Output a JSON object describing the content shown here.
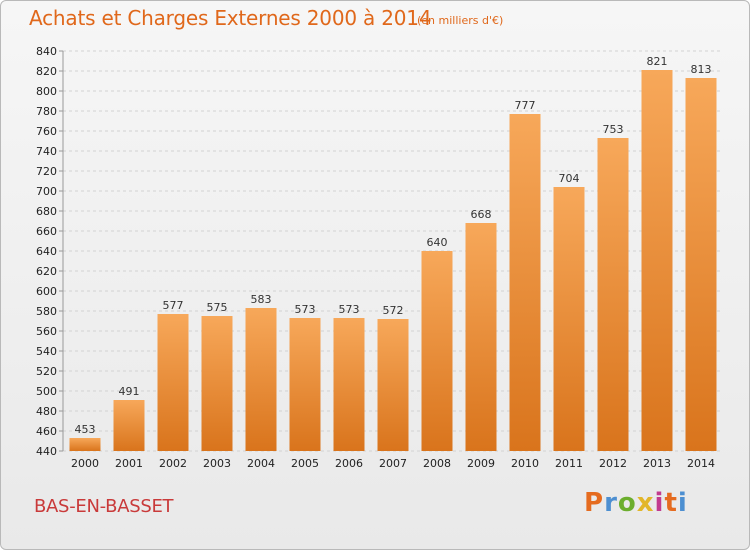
{
  "header": {
    "title": "Achats et Charges Externes 2000 à 2014",
    "subtitle": "(en milliers d'€)"
  },
  "footer": {
    "commune": "BAS-EN-BASSET",
    "logo_text": "Proxiti",
    "logo_colors": [
      "#e56b1f",
      "#4d8fd1",
      "#6cae2e",
      "#e2b62a",
      "#c23b8f",
      "#e56b1f",
      "#4d8fd1"
    ]
  },
  "chart_data": {
    "type": "bar",
    "title": "Achats et Charges Externes 2000 à 2014",
    "subtitle": "(en milliers d'€)",
    "categories": [
      "2000",
      "2001",
      "2002",
      "2003",
      "2004",
      "2005",
      "2006",
      "2007",
      "2008",
      "2009",
      "2010",
      "2011",
      "2012",
      "2013",
      "2014"
    ],
    "values": [
      453,
      491,
      577,
      575,
      583,
      573,
      573,
      572,
      640,
      668,
      777,
      704,
      753,
      821,
      813
    ],
    "ylim": [
      440,
      840
    ],
    "yticks": [
      440,
      460,
      480,
      500,
      520,
      540,
      560,
      580,
      600,
      620,
      640,
      660,
      680,
      700,
      720,
      740,
      760,
      780,
      800,
      820,
      840
    ],
    "grid": true,
    "colors": {
      "bar_light": "#f7a85a",
      "bar_dark": "#d9741c",
      "grid": "#d2d2d2",
      "axis_text": "#222222",
      "value_text": "#333333"
    }
  }
}
